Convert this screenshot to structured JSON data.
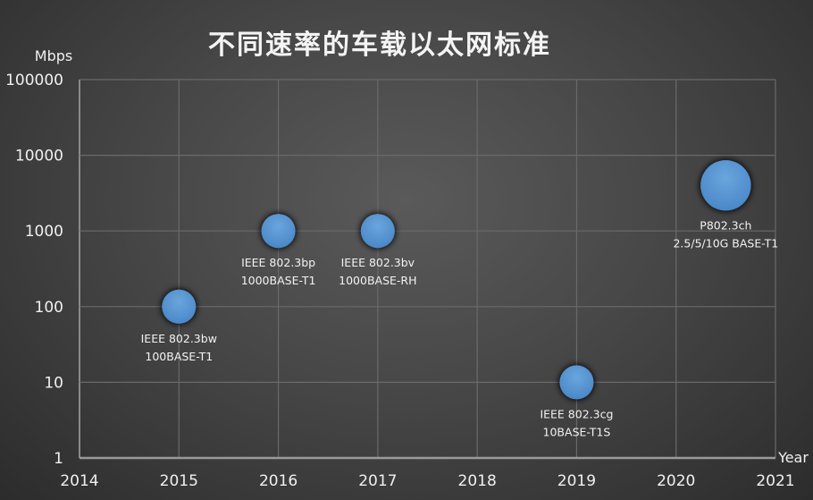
{
  "chart_data": {
    "type": "bubble",
    "title": "不同速率的车载以太网标准",
    "xlabel": "Year",
    "ylabel": "Mbps",
    "xlim": [
      2014,
      2021
    ],
    "ylim": [
      1,
      100000
    ],
    "yscale": "log",
    "grid": true,
    "x_ticks": [
      "2014",
      "2015",
      "2016",
      "2017",
      "2018",
      "2019",
      "2020",
      "2021"
    ],
    "y_ticks": [
      "1",
      "10",
      "100",
      "1000",
      "10000",
      "100000"
    ],
    "bubble_color": "#5b9bd5",
    "points": [
      {
        "x": 2015,
        "y": 100,
        "size": 1,
        "label": [
          "IEEE 802.3bw",
          "100BASE-T1"
        ]
      },
      {
        "x": 2016,
        "y": 1000,
        "size": 1,
        "label": [
          "IEEE 802.3bp",
          "1000BASE-T1"
        ]
      },
      {
        "x": 2017,
        "y": 1000,
        "size": 1,
        "label": [
          "IEEE 802.3bv",
          "1000BASE-RH"
        ]
      },
      {
        "x": 2019,
        "y": 10,
        "size": 1,
        "label": [
          "IEEE 802.3cg",
          "10BASE-T1S"
        ]
      },
      {
        "x": 2020.5,
        "y": 4000,
        "size": 2.2,
        "label": [
          "P802.3ch",
          "2.5/5/10G BASE-T1"
        ]
      }
    ]
  }
}
